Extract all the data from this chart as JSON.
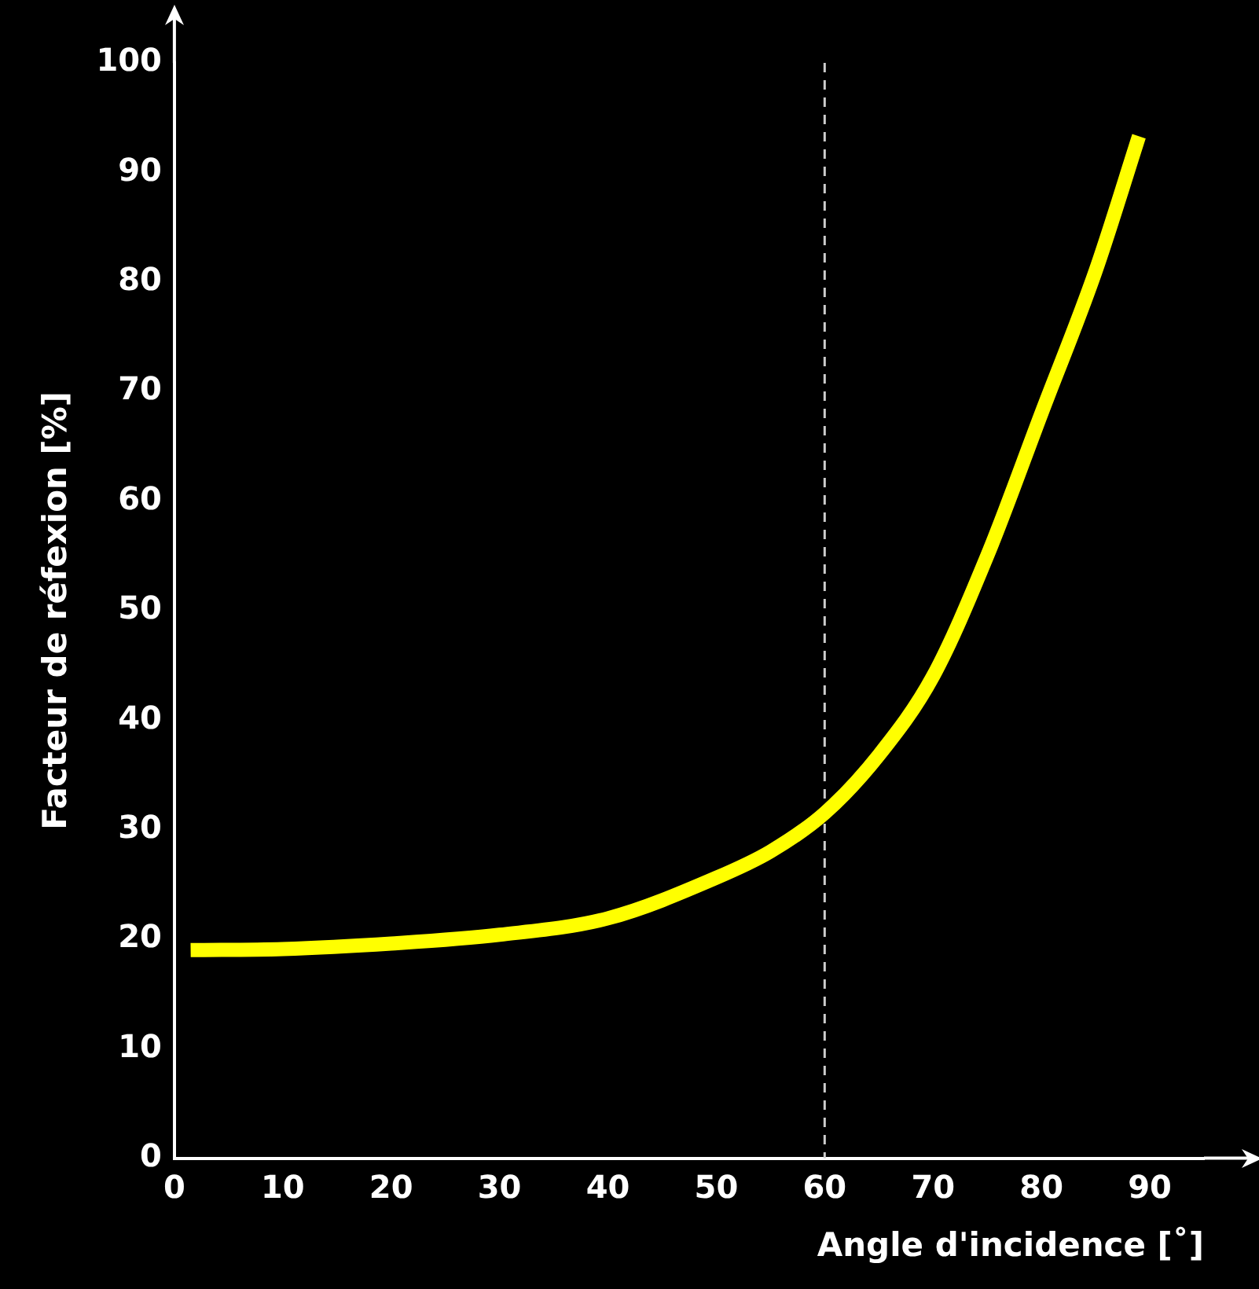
{
  "chart_data": {
    "type": "line",
    "xlabel": "Angle d'incidence [˚]",
    "ylabel": "Facteur de réfexion [%]",
    "x": [
      1.5,
      10,
      20,
      30,
      40,
      50,
      55,
      60,
      65,
      70,
      75,
      80,
      85,
      89
    ],
    "series": [
      {
        "color": "#ffff00",
        "values": [
          19,
          19.1,
          19.6,
          20.4,
          21.9,
          25.6,
          28,
          31.5,
          36.8,
          44,
          55,
          68,
          81,
          93.3
        ]
      }
    ],
    "xlim": [
      0,
      95
    ],
    "xticks": [
      0,
      10,
      20,
      30,
      40,
      50,
      60,
      70,
      80,
      90
    ],
    "ylim": [
      0,
      100
    ],
    "yticks": [
      0,
      10,
      20,
      30,
      40,
      50,
      60,
      70,
      80,
      90,
      100
    ],
    "ref_lines": [
      {
        "axis": "x",
        "value": 60,
        "color": "#cccccc",
        "line_style": "dashed"
      }
    ],
    "grid": false,
    "legend": false,
    "marker": "none",
    "line_style": "solid"
  }
}
